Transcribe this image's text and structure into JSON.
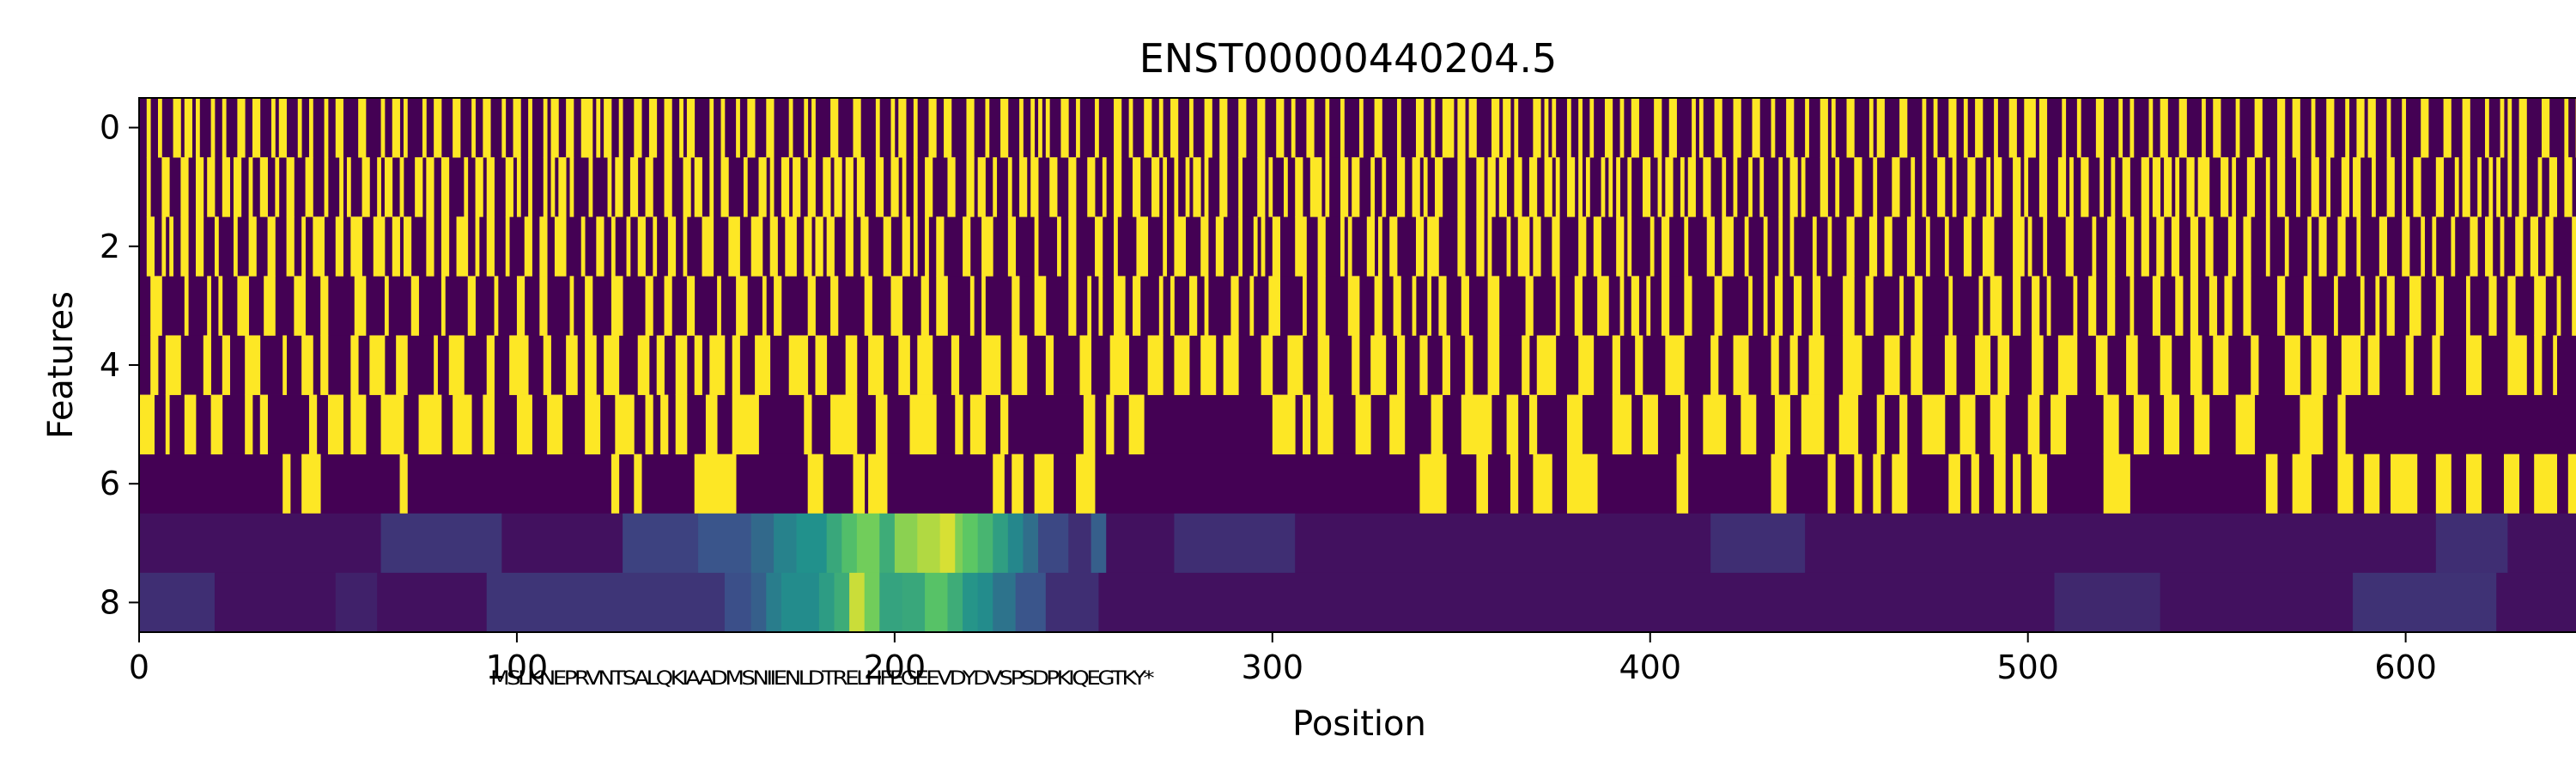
{
  "chart_data": {
    "type": "heatmap",
    "title": "ENST00000440204.5",
    "xlabel": "Position",
    "ylabel": "Features",
    "xlim": [
      0,
      646
    ],
    "ylim": [
      8.5,
      -0.5
    ],
    "x_ticks": [
      0,
      100,
      200,
      300,
      400,
      500,
      600
    ],
    "y_ticks": [
      0,
      2,
      4,
      6,
      8
    ],
    "colormap": "viridis",
    "n_rows": 9,
    "row_seeds": [
      11,
      23,
      37,
      41,
      53
    ],
    "row_densities": [
      0.38,
      0.4,
      0.35,
      0.3,
      0.42
    ],
    "row_run_lengths": [
      1.2,
      1.2,
      1.3,
      1.4,
      2.5
    ],
    "row5_blocks": [
      [
        0,
        4
      ],
      [
        7,
        8
      ],
      [
        12,
        15
      ],
      [
        19,
        22
      ],
      [
        28,
        30
      ],
      [
        32,
        34
      ],
      [
        45,
        47
      ],
      [
        50,
        54
      ],
      [
        56,
        60
      ],
      [
        64,
        70
      ],
      [
        74,
        80
      ],
      [
        83,
        88
      ],
      [
        91,
        94
      ],
      [
        100,
        104
      ],
      [
        108,
        112
      ],
      [
        118,
        122
      ],
      [
        126,
        131
      ],
      [
        134,
        136
      ],
      [
        138,
        140
      ],
      [
        142,
        145
      ],
      [
        150,
        153
      ],
      [
        157,
        164
      ],
      [
        176,
        178
      ],
      [
        183,
        190
      ],
      [
        195,
        198
      ],
      [
        204,
        211
      ],
      [
        216,
        218
      ],
      [
        220,
        224
      ],
      [
        228,
        230
      ],
      [
        250,
        253
      ],
      [
        256,
        258
      ],
      [
        262,
        266
      ],
      [
        300,
        306
      ],
      [
        308,
        310
      ],
      [
        312,
        316
      ],
      [
        322,
        326
      ],
      [
        331,
        335
      ],
      [
        342,
        345
      ],
      [
        350,
        358
      ],
      [
        362,
        365
      ],
      [
        368,
        370
      ],
      [
        378,
        382
      ],
      [
        390,
        395
      ],
      [
        398,
        402
      ],
      [
        408,
        410
      ],
      [
        414,
        420
      ],
      [
        424,
        428
      ],
      [
        433,
        437
      ],
      [
        440,
        446
      ],
      [
        450,
        455
      ],
      [
        460,
        462
      ],
      [
        466,
        468
      ],
      [
        472,
        478
      ],
      [
        482,
        486
      ],
      [
        490,
        494
      ],
      [
        500,
        503
      ],
      [
        506,
        510
      ],
      [
        520,
        524
      ],
      [
        528,
        532
      ],
      [
        536,
        540
      ],
      [
        544,
        548
      ],
      [
        555,
        560
      ],
      [
        572,
        578
      ],
      [
        582,
        584
      ]
    ],
    "row6_blocks": [
      [
        38,
        40
      ],
      [
        43,
        48
      ],
      [
        69,
        71
      ],
      [
        125,
        127
      ],
      [
        131,
        133
      ],
      [
        147,
        158
      ],
      [
        177,
        181
      ],
      [
        189,
        192
      ],
      [
        193,
        198
      ],
      [
        226,
        229
      ],
      [
        231,
        234
      ],
      [
        237,
        242
      ],
      [
        248,
        253
      ],
      [
        339,
        346
      ],
      [
        354,
        357
      ],
      [
        363,
        365
      ],
      [
        369,
        374
      ],
      [
        378,
        386
      ],
      [
        407,
        410
      ],
      [
        432,
        436
      ],
      [
        447,
        449
      ],
      [
        454,
        456
      ],
      [
        459,
        461
      ],
      [
        464,
        468
      ],
      [
        479,
        482
      ],
      [
        485,
        487
      ],
      [
        491,
        494
      ],
      [
        496,
        498
      ],
      [
        501,
        505
      ],
      [
        520,
        527
      ],
      [
        563,
        566
      ],
      [
        570,
        575
      ],
      [
        582,
        586
      ],
      [
        589,
        593
      ],
      [
        596,
        603
      ],
      [
        608,
        612
      ],
      [
        616,
        620
      ],
      [
        626,
        630
      ],
      [
        634,
        640
      ],
      [
        643,
        646
      ]
    ],
    "row7_segments": [
      {
        "start": 0,
        "end": 64,
        "value": 0.05
      },
      {
        "start": 64,
        "end": 96,
        "value": 0.16
      },
      {
        "start": 96,
        "end": 128,
        "value": 0.05
      },
      {
        "start": 128,
        "end": 148,
        "value": 0.2
      },
      {
        "start": 148,
        "end": 162,
        "value": 0.26
      },
      {
        "start": 162,
        "end": 168,
        "value": 0.34
      },
      {
        "start": 168,
        "end": 174,
        "value": 0.44
      },
      {
        "start": 174,
        "end": 182,
        "value": 0.5
      },
      {
        "start": 182,
        "end": 186,
        "value": 0.6
      },
      {
        "start": 186,
        "end": 190,
        "value": 0.7
      },
      {
        "start": 190,
        "end": 196,
        "value": 0.78
      },
      {
        "start": 196,
        "end": 200,
        "value": 0.62
      },
      {
        "start": 200,
        "end": 206,
        "value": 0.82
      },
      {
        "start": 206,
        "end": 212,
        "value": 0.88
      },
      {
        "start": 212,
        "end": 216,
        "value": 0.94
      },
      {
        "start": 216,
        "end": 218,
        "value": 0.8
      },
      {
        "start": 218,
        "end": 222,
        "value": 0.74
      },
      {
        "start": 222,
        "end": 226,
        "value": 0.66
      },
      {
        "start": 226,
        "end": 230,
        "value": 0.56
      },
      {
        "start": 230,
        "end": 234,
        "value": 0.46
      },
      {
        "start": 234,
        "end": 238,
        "value": 0.36
      },
      {
        "start": 238,
        "end": 246,
        "value": 0.22
      },
      {
        "start": 246,
        "end": 252,
        "value": 0.14
      },
      {
        "start": 252,
        "end": 256,
        "value": 0.3
      },
      {
        "start": 256,
        "end": 274,
        "value": 0.05
      },
      {
        "start": 274,
        "end": 306,
        "value": 0.14
      },
      {
        "start": 306,
        "end": 416,
        "value": 0.05
      },
      {
        "start": 416,
        "end": 441,
        "value": 0.14
      },
      {
        "start": 441,
        "end": 608,
        "value": 0.05
      },
      {
        "start": 608,
        "end": 627,
        "value": 0.14
      },
      {
        "start": 627,
        "end": 646,
        "value": 0.05
      }
    ],
    "row8_segments": [
      {
        "start": 0,
        "end": 20,
        "value": 0.14
      },
      {
        "start": 20,
        "end": 52,
        "value": 0.05
      },
      {
        "start": 52,
        "end": 63,
        "value": 0.1
      },
      {
        "start": 63,
        "end": 92,
        "value": 0.05
      },
      {
        "start": 92,
        "end": 155,
        "value": 0.16
      },
      {
        "start": 155,
        "end": 162,
        "value": 0.24
      },
      {
        "start": 162,
        "end": 166,
        "value": 0.3
      },
      {
        "start": 166,
        "end": 170,
        "value": 0.42
      },
      {
        "start": 170,
        "end": 180,
        "value": 0.48
      },
      {
        "start": 180,
        "end": 184,
        "value": 0.55
      },
      {
        "start": 184,
        "end": 188,
        "value": 0.62
      },
      {
        "start": 188,
        "end": 192,
        "value": 0.92
      },
      {
        "start": 192,
        "end": 196,
        "value": 0.78
      },
      {
        "start": 196,
        "end": 202,
        "value": 0.58
      },
      {
        "start": 202,
        "end": 208,
        "value": 0.6
      },
      {
        "start": 208,
        "end": 214,
        "value": 0.72
      },
      {
        "start": 214,
        "end": 218,
        "value": 0.62
      },
      {
        "start": 218,
        "end": 222,
        "value": 0.52
      },
      {
        "start": 222,
        "end": 226,
        "value": 0.48
      },
      {
        "start": 226,
        "end": 232,
        "value": 0.38
      },
      {
        "start": 232,
        "end": 240,
        "value": 0.26
      },
      {
        "start": 240,
        "end": 254,
        "value": 0.14
      },
      {
        "start": 254,
        "end": 507,
        "value": 0.05
      },
      {
        "start": 507,
        "end": 535,
        "value": 0.12
      },
      {
        "start": 535,
        "end": 586,
        "value": 0.05
      },
      {
        "start": 586,
        "end": 624,
        "value": 0.15
      },
      {
        "start": 624,
        "end": 646,
        "value": 0.05
      }
    ],
    "sequence_annotation": {
      "text": "MSLKNEPRVNTSALQKIAADMSNIIENLDTRELHFEGEEVDYDVSPSDPKIQEGTKY*",
      "start": 93,
      "end": 268
    }
  }
}
